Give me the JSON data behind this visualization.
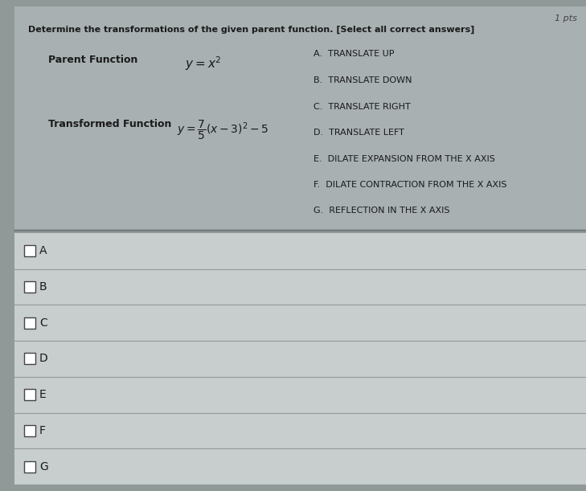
{
  "title_pts": "1 pts",
  "main_question": "Determine the transformations of the given parent function. [Select all correct answers]",
  "parent_label": "Parent Function",
  "transformed_label": "Transformed Function",
  "options": [
    "A.  TRANSLATE UP",
    "B.  TRANSLATE DOWN",
    "C.  TRANSLATE RIGHT",
    "D.  TRANSLATE LEFT",
    "E.  DILATE EXPANSION FROM THE X AXIS",
    "F.  DILATE CONTRACTION FROM THE X AXIS",
    "G.  REFLECTION IN THE X AXIS"
  ],
  "checkbox_labels": [
    "A",
    "B",
    "C",
    "D",
    "E",
    "F",
    "G"
  ],
  "upper_bg": "#a8b0b2",
  "lower_bg": "#c8cece",
  "outer_bg": "#909898",
  "dark_text": "#1a1a1a",
  "line_color": "#909898",
  "divider_color": "#707878"
}
